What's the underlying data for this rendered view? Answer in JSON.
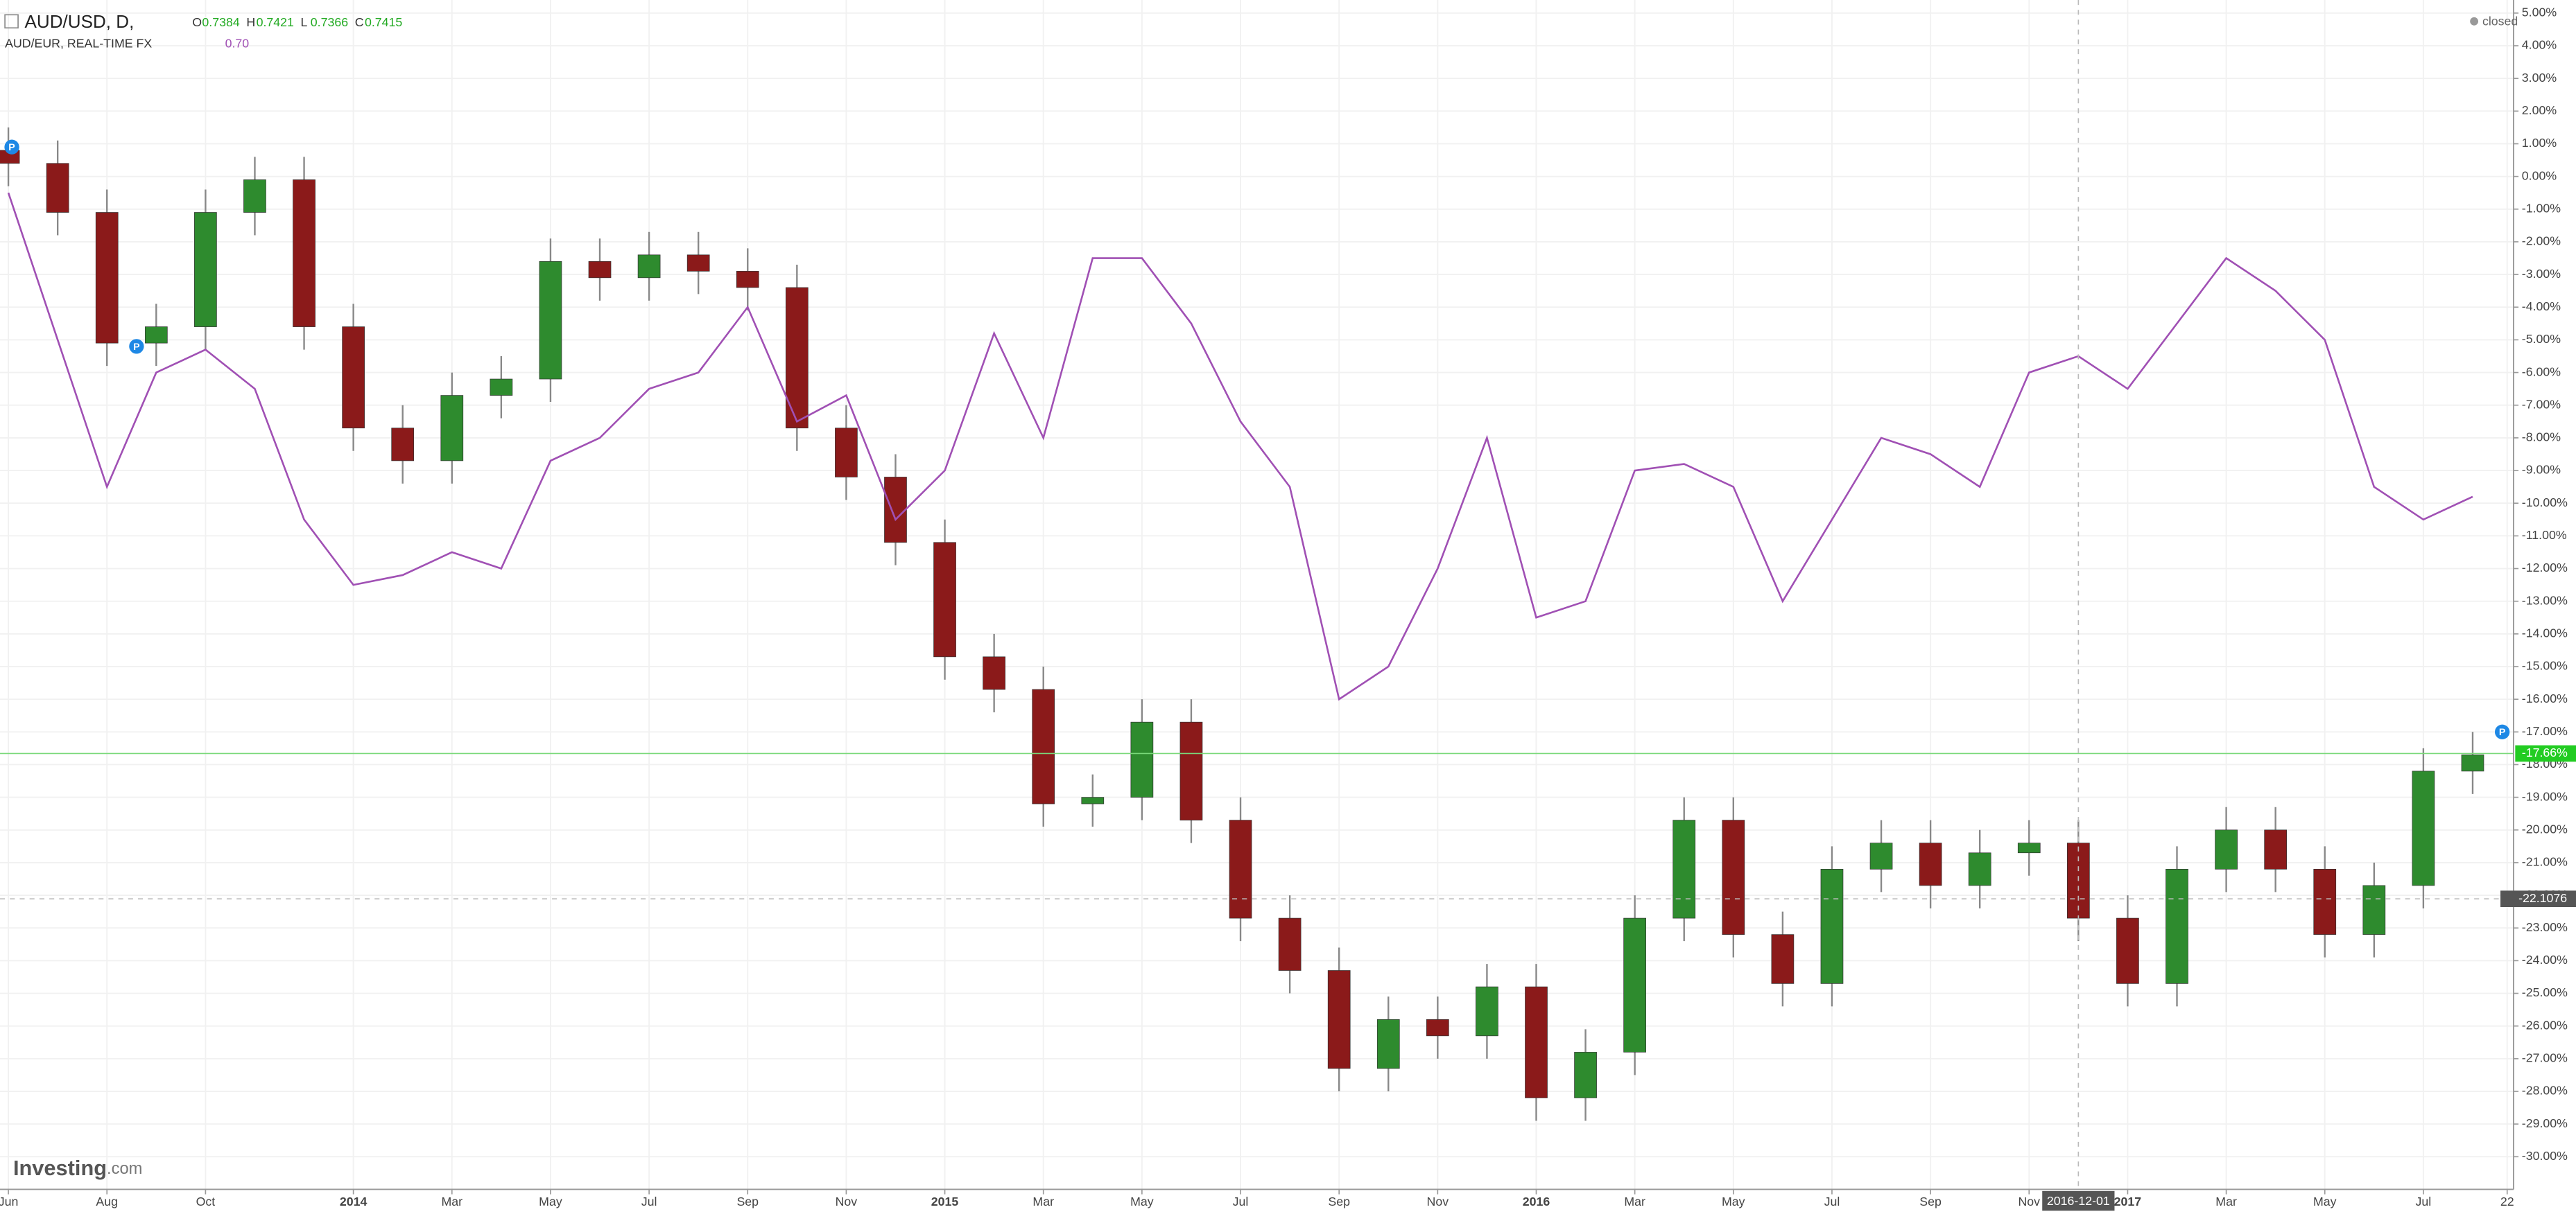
{
  "chart_data": {
    "type": "candlestick",
    "status": "closed",
    "logo": {
      "main": "Investing",
      "suffix": ".com"
    },
    "ohlc_legend": [
      {
        "label": "O",
        "value": "0.7384"
      },
      {
        "label": "H",
        "value": "0.7421"
      },
      {
        "label": "L",
        "value": "0.7366"
      },
      {
        "label": "C",
        "value": "0.7415"
      }
    ],
    "compare_value": "0.70",
    "x": [
      0,
      1,
      2,
      3,
      4,
      5,
      6,
      7,
      8,
      9,
      10,
      11,
      12,
      13,
      14,
      15,
      16,
      17,
      18,
      19,
      20,
      21,
      22,
      23,
      24,
      25,
      26,
      27,
      28,
      29,
      30,
      31,
      32,
      33,
      34,
      35,
      36,
      37,
      38,
      39,
      40,
      41,
      42,
      43,
      44,
      45,
      46,
      47,
      48,
      49,
      50
    ],
    "series": [
      {
        "name": "AUD/USD, D,",
        "color_up": "#2e8b2e",
        "color_down": "#8b1a1a",
        "wick_color": "#888888",
        "open": [
          0.8,
          0.4,
          -1.1,
          -5.1,
          -4.6,
          -1.1,
          -0.1,
          -4.6,
          -7.7,
          -8.7,
          -6.7,
          -6.2,
          -2.6,
          -3.1,
          -2.4,
          -2.9,
          -3.4,
          -7.7,
          -9.2,
          -11.2,
          -14.7,
          -15.7,
          -19.2,
          -19.0,
          -16.7,
          -19.7,
          -22.7,
          -24.3,
          -27.3,
          -25.8,
          -26.3,
          -24.8,
          -28.2,
          -26.8,
          -22.7,
          -19.7,
          -23.2,
          -24.7,
          -21.2,
          -20.4,
          -21.7,
          -20.7,
          -20.4,
          -22.7,
          -24.7,
          -21.2,
          -20.0,
          -21.2,
          -23.2,
          -21.7,
          -18.2
        ],
        "high": [
          1.5,
          1.1,
          -0.4,
          -3.9,
          -0.4,
          0.6,
          0.6,
          -3.9,
          -7.0,
          -6.0,
          -5.5,
          -1.9,
          -1.9,
          -1.7,
          -1.7,
          -2.2,
          -2.7,
          -7.0,
          -8.5,
          -10.5,
          -14.0,
          -15.0,
          -18.3,
          -16.0,
          -16.0,
          -19.0,
          -22.0,
          -23.6,
          -25.1,
          -25.1,
          -24.1,
          -24.1,
          -26.1,
          -22.0,
          -19.0,
          -19.0,
          -22.5,
          -20.5,
          -19.7,
          -19.7,
          -20.0,
          -19.7,
          -19.7,
          -22.0,
          -20.5,
          -19.3,
          -19.3,
          -20.5,
          -21.0,
          -17.5,
          -17.0
        ],
        "low": [
          -0.3,
          -1.8,
          -5.8,
          -5.8,
          -5.3,
          -1.8,
          -5.3,
          -8.4,
          -9.4,
          -9.4,
          -7.4,
          -6.9,
          -3.8,
          -3.8,
          -3.6,
          -4.1,
          -8.4,
          -9.9,
          -11.9,
          -15.4,
          -16.4,
          -19.9,
          -19.9,
          -19.7,
          -20.4,
          -23.4,
          -25.0,
          -28.0,
          -28.0,
          -27.0,
          -27.0,
          -28.9,
          -28.9,
          -27.5,
          -23.4,
          -23.9,
          -25.4,
          -25.4,
          -21.9,
          -22.4,
          -22.4,
          -21.4,
          -23.4,
          -25.4,
          -25.4,
          -21.9,
          -21.9,
          -23.9,
          -23.9,
          -22.4,
          -18.9
        ],
        "close": [
          0.4,
          -1.1,
          -5.1,
          -4.6,
          -1.1,
          -0.1,
          -4.6,
          -7.7,
          -8.7,
          -6.7,
          -6.2,
          -2.6,
          -3.1,
          -2.4,
          -2.9,
          -3.4,
          -7.7,
          -9.2,
          -11.2,
          -14.7,
          -15.7,
          -19.2,
          -19.0,
          -16.7,
          -19.7,
          -22.7,
          -24.3,
          -27.3,
          -25.8,
          -26.3,
          -24.8,
          -28.2,
          -26.8,
          -22.7,
          -19.7,
          -23.2,
          -24.7,
          -21.2,
          -20.4,
          -21.7,
          -20.7,
          -20.4,
          -22.7,
          -24.7,
          -21.2,
          -20.0,
          -21.2,
          -23.2,
          -21.7,
          -18.2,
          -17.7
        ]
      },
      {
        "name": "AUD/EUR, REAL-TIME FX",
        "type": "line",
        "color": "#a050b4",
        "values": [
          -0.5,
          -5.0,
          -9.5,
          -6.0,
          -5.3,
          -6.5,
          -10.5,
          -12.5,
          -12.2,
          -11.5,
          -12.0,
          -8.7,
          -8.0,
          -6.5,
          -6.0,
          -4.0,
          -7.5,
          -6.7,
          -10.5,
          -9.0,
          -4.8,
          -8.0,
          -2.5,
          -2.5,
          -4.5,
          -7.5,
          -9.5,
          -16.0,
          -15.0,
          -12.0,
          -8.0,
          -13.5,
          -13.0,
          -9.0,
          -8.8,
          -9.5,
          -13.0,
          -10.5,
          -8.0,
          -8.5,
          -9.5,
          -6.0,
          -5.5,
          -6.5,
          -4.5,
          -2.5,
          -3.5,
          -5.0,
          -9.5,
          -10.5,
          -9.8
        ]
      }
    ],
    "event_markers": [
      {
        "x": 0.07,
        "y": 0.9,
        "label": "P"
      },
      {
        "x": 2.6,
        "y": -5.2,
        "label": "P"
      },
      {
        "x": 50.6,
        "y": -17.0,
        "label": "P"
      }
    ],
    "last_value": {
      "value": -17.66,
      "label": "-17.66%"
    },
    "crosshair": {
      "x": {
        "value": 42,
        "label": "2016-12-01"
      },
      "y": -22.1076
    },
    "xlim": [
      -0.17,
      50.83
    ],
    "xticks": [
      {
        "value": 0,
        "label": "Jun"
      },
      {
        "value": 2,
        "label": "Aug"
      },
      {
        "value": 4,
        "label": "Oct"
      },
      {
        "value": 7,
        "label": "2014"
      },
      {
        "value": 9,
        "label": "Mar"
      },
      {
        "value": 11,
        "label": "May"
      },
      {
        "value": 13,
        "label": "Jul"
      },
      {
        "value": 15,
        "label": "Sep"
      },
      {
        "value": 17,
        "label": "Nov"
      },
      {
        "value": 19,
        "label": "2015"
      },
      {
        "value": 21,
        "label": "Mar"
      },
      {
        "value": 23,
        "label": "May"
      },
      {
        "value": 25,
        "label": "Jul"
      },
      {
        "value": 27,
        "label": "Sep"
      },
      {
        "value": 29,
        "label": "Nov"
      },
      {
        "value": 31,
        "label": "2016"
      },
      {
        "value": 33,
        "label": "Mar"
      },
      {
        "value": 35,
        "label": "May"
      },
      {
        "value": 37,
        "label": "Jul"
      },
      {
        "value": 39,
        "label": "Sep"
      },
      {
        "value": 41,
        "label": "Nov"
      },
      {
        "value": 43,
        "label": "2017"
      },
      {
        "value": 45,
        "label": "Mar"
      },
      {
        "value": 47,
        "label": "May"
      },
      {
        "value": 49,
        "label": "Jul"
      },
      {
        "value": 50.7,
        "label": "22"
      }
    ],
    "ylim": [
      -31.0,
      5.4
    ],
    "yticks": [
      {
        "value": 5,
        "label": "5.00%"
      },
      {
        "value": 4,
        "label": "4.00%"
      },
      {
        "value": 3,
        "label": "3.00%"
      },
      {
        "value": 2,
        "label": "2.00%"
      },
      {
        "value": 1,
        "label": "1.00%"
      },
      {
        "value": 0,
        "label": "0.00%"
      },
      {
        "value": -1,
        "label": "-1.00%"
      },
      {
        "value": -2,
        "label": "-2.00%"
      },
      {
        "value": -3,
        "label": "-3.00%"
      },
      {
        "value": -4,
        "label": "-4.00%"
      },
      {
        "value": -5,
        "label": "-5.00%"
      },
      {
        "value": -6,
        "label": "-6.00%"
      },
      {
        "value": -7,
        "label": "-7.00%"
      },
      {
        "value": -8,
        "label": "-8.00%"
      },
      {
        "value": -9,
        "label": "-9.00%"
      },
      {
        "value": -10,
        "label": "-10.00%"
      },
      {
        "value": -11,
        "label": "-11.00%"
      },
      {
        "value": -12,
        "label": "-12.00%"
      },
      {
        "value": -13,
        "label": "-13.00%"
      },
      {
        "value": -14,
        "label": "-14.00%"
      },
      {
        "value": -15,
        "label": "-15.00%"
      },
      {
        "value": -16,
        "label": "-16.00%"
      },
      {
        "value": -17,
        "label": "-17.00%"
      },
      {
        "value": -18,
        "label": "-18.00%"
      },
      {
        "value": -19,
        "label": "-19.00%"
      },
      {
        "value": -20,
        "label": "-20.00%"
      },
      {
        "value": -21,
        "label": "-21.00%"
      },
      {
        "value": -22,
        "label": "-22.00%"
      },
      {
        "value": -23,
        "label": "-23.00%"
      },
      {
        "value": -24,
        "label": "-24.00%"
      },
      {
        "value": -25,
        "label": "-25.00%"
      },
      {
        "value": -26,
        "label": "-26.00%"
      },
      {
        "value": -27,
        "label": "-27.00%"
      },
      {
        "value": -28,
        "label": "-28.00%"
      },
      {
        "value": -29,
        "label": "-29.00%"
      },
      {
        "value": -30,
        "label": "-30.00%"
      }
    ],
    "grid": true
  }
}
